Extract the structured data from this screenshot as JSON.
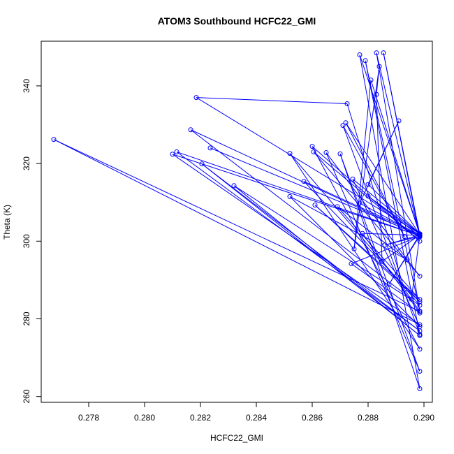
{
  "chart_data": {
    "type": "line",
    "title": "ATOM3 Southbound HCFC22_GMI",
    "xlabel": "HCFC22_GMI",
    "ylabel": "Theta (K)",
    "xlim": [
      0.2763,
      0.2903
    ],
    "ylim": [
      258.5,
      351.5
    ],
    "x_ticks": [
      0.278,
      0.28,
      0.282,
      0.284,
      0.286,
      0.288,
      0.29
    ],
    "x_tick_labels": [
      "0.278",
      "0.280",
      "0.282",
      "0.284",
      "0.286",
      "0.288",
      "0.290"
    ],
    "y_ticks": [
      260,
      280,
      300,
      320,
      340
    ],
    "y_tick_labels": [
      "260",
      "280",
      "300",
      "320",
      "340"
    ],
    "grid": false,
    "series_color": "#0000ff",
    "marker": "open-circle",
    "series": [
      {
        "name": "",
        "points": [
          [
            0.28235,
            324.0
          ],
          [
            0.28985,
            301.6
          ],
          [
            0.28955,
            285.1
          ],
          [
            0.28165,
            328.7
          ],
          [
            0.28985,
            301.3
          ],
          [
            0.288,
            311.6
          ],
          [
            0.28985,
            301.9
          ],
          [
            0.28185,
            337.0
          ],
          [
            0.28725,
            335.4
          ],
          [
            0.2893,
            287.6
          ],
          [
            0.28985,
            281.9
          ],
          [
            0.27675,
            326.2
          ],
          [
            0.28985,
            278.5
          ],
          [
            0.281,
            322.4
          ],
          [
            0.28985,
            301.4
          ],
          [
            0.28115,
            323.0
          ],
          [
            0.28985,
            276.9
          ],
          [
            0.28205,
            319.9
          ],
          [
            0.28985,
            275.7
          ],
          [
            0.2832,
            314.3
          ],
          [
            0.28985,
            283.5
          ],
          [
            0.2852,
            322.6
          ],
          [
            0.28985,
            272.2
          ],
          [
            0.286,
            324.4
          ],
          [
            0.28985,
            300.0
          ],
          [
            0.28605,
            323.0
          ],
          [
            0.28985,
            291.0
          ],
          [
            0.2865,
            322.8
          ],
          [
            0.28985,
            266.5
          ],
          [
            0.287,
            322.5
          ],
          [
            0.28985,
            262.0
          ],
          [
            0.2877,
            348.0
          ],
          [
            0.28985,
            301.8
          ],
          [
            0.28855,
            348.5
          ],
          [
            0.28985,
            301.1
          ],
          [
            0.2883,
            348.5
          ],
          [
            0.28985,
            282.0
          ],
          [
            0.2879,
            346.5
          ],
          [
            0.28985,
            276.0
          ],
          [
            0.2871,
            329.8
          ],
          [
            0.2893,
            301.2
          ],
          [
            0.2872,
            330.5
          ],
          [
            0.28985,
            301.7
          ],
          [
            0.2857,
            315.4
          ],
          [
            0.28985,
            284.4
          ],
          [
            0.2861,
            309.3
          ],
          [
            0.28985,
            285.0
          ],
          [
            0.2869,
            308.9
          ],
          [
            0.2894,
            295.2
          ],
          [
            0.2852,
            311.5
          ],
          [
            0.28985,
            278.0
          ],
          [
            0.28745,
            316.0
          ],
          [
            0.28985,
            301.9
          ],
          [
            0.288,
            314.6
          ],
          [
            0.2891,
            331.0
          ],
          [
            0.2877,
            309.8
          ],
          [
            0.28985,
            301.5
          ],
          [
            0.2878,
            302.0
          ],
          [
            0.28985,
            281.5
          ],
          [
            0.2874,
            294.2
          ],
          [
            0.28985,
            301.3
          ],
          [
            0.2886,
            299.0
          ],
          [
            0.28985,
            301.6
          ],
          [
            0.2885,
            294.8
          ],
          [
            0.2883,
            337.8
          ],
          [
            0.2884,
            345.0
          ],
          [
            0.2875,
            298.0
          ],
          [
            0.2881,
            341.5
          ],
          [
            0.28985,
            301.7
          ],
          [
            0.28875,
            288.9
          ],
          [
            0.28985,
            301.4
          ]
        ]
      }
    ]
  }
}
